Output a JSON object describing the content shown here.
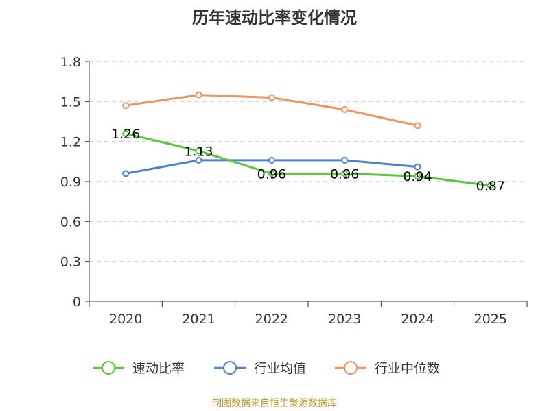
{
  "chart_data": {
    "type": "line",
    "title": "历年速动比率变化情况",
    "categories": [
      "2020",
      "2021",
      "2022",
      "2023",
      "2024",
      "2025"
    ],
    "y_ticks": [
      "0",
      "0.3",
      "0.6",
      "0.9",
      "1.2",
      "1.5",
      "1.8"
    ],
    "ylim": [
      0,
      1.8
    ],
    "grid": true,
    "legend_position": "bottom",
    "series": [
      {
        "name": "速动比率",
        "color": "#5bc637",
        "values": [
          1.26,
          1.13,
          0.96,
          0.96,
          0.94,
          0.87
        ],
        "data_labels": [
          "1.26",
          "1.13",
          "0.96",
          "0.96",
          "0.94",
          "0.87"
        ]
      },
      {
        "name": "行业均值",
        "color": "#4d7fd6",
        "values": [
          0.96,
          1.06,
          1.06,
          1.06,
          1.01,
          null
        ]
      },
      {
        "name": "行业中位数",
        "color": "#f5925c",
        "values": [
          1.47,
          1.55,
          1.53,
          1.44,
          1.32,
          null
        ]
      }
    ]
  },
  "source_note": "制图数据来自恒生聚源数据库"
}
